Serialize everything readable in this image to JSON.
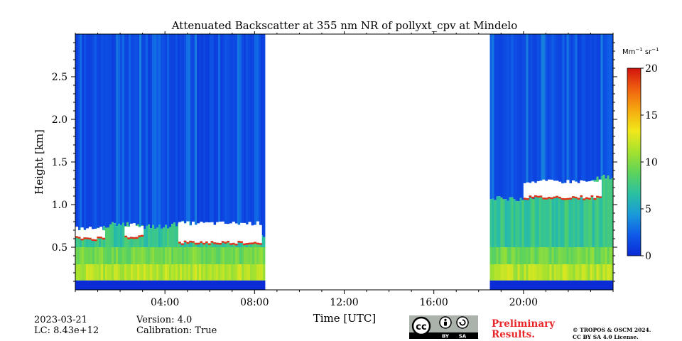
{
  "chart_data": {
    "type": "heatmap",
    "title": "Attenuated Backscatter at 355 nm NR of pollyxt_cpv at Mindelo",
    "xlabel": "Time [UTC]",
    "ylabel": "Height [km]",
    "x_unit": "hours UTC",
    "xlim": [
      0,
      24
    ],
    "ylim": [
      0,
      3.0
    ],
    "x_ticks": [
      {
        "value": 4,
        "label": "04:00"
      },
      {
        "value": 8,
        "label": "08:00"
      },
      {
        "value": 12,
        "label": "12:00"
      },
      {
        "value": 16,
        "label": "16:00"
      },
      {
        "value": 20,
        "label": "20:00"
      }
    ],
    "y_ticks": [
      {
        "value": 0.5,
        "label": "0.5"
      },
      {
        "value": 1.0,
        "label": "1.0"
      },
      {
        "value": 1.5,
        "label": "1.5"
      },
      {
        "value": 2.0,
        "label": "2.0"
      },
      {
        "value": 2.5,
        "label": "2.5"
      }
    ],
    "colorbar": {
      "label_parts": {
        "base": "Mm",
        "exp1": "−1",
        "mid": " sr",
        "exp2": "−1"
      },
      "min": 0,
      "max": 20,
      "ticks": [
        {
          "value": 0,
          "label": "0"
        },
        {
          "value": 5,
          "label": "5"
        },
        {
          "value": 10,
          "label": "10"
        },
        {
          "value": 15,
          "label": "15"
        },
        {
          "value": 20,
          "label": "20"
        }
      ],
      "colormap": [
        "#0a2bd6",
        "#0f5ae8",
        "#1a9bd8",
        "#2bc0a0",
        "#5fd35a",
        "#a6e22e",
        "#f2e81a",
        "#f5a90f",
        "#f06010",
        "#d2130f"
      ]
    },
    "data_segments": [
      {
        "start_hour": 0.0,
        "end_hour": 8.4
      },
      {
        "start_hour": 18.5,
        "end_hour": 24.0
      }
    ],
    "no_data_gap": {
      "start_hour": 8.4,
      "end_hour": 18.5
    },
    "layer_top_profile_km": [
      {
        "hour": 0.0,
        "km": 0.72
      },
      {
        "hour": 1.0,
        "km": 0.7
      },
      {
        "hour": 1.5,
        "km": 0.77
      },
      {
        "hour": 2.3,
        "km": 0.78
      },
      {
        "hour": 3.0,
        "km": 0.74
      },
      {
        "hour": 4.0,
        "km": 0.74
      },
      {
        "hour": 5.0,
        "km": 0.8
      },
      {
        "hour": 6.0,
        "km": 0.74
      },
      {
        "hour": 7.0,
        "km": 0.72
      },
      {
        "hour": 8.4,
        "km": 0.62
      },
      {
        "hour": 18.5,
        "km": 1.08
      },
      {
        "hour": 20.0,
        "km": 1.06
      },
      {
        "hour": 21.0,
        "km": 1.13
      },
      {
        "hour": 22.0,
        "km": 1.22
      },
      {
        "hour": 23.0,
        "km": 1.26
      },
      {
        "hour": 23.3,
        "km": 1.32
      }
    ],
    "cloud_layer": [
      {
        "start_hour": 0.0,
        "end_hour": 1.3,
        "bottom_km": 0.6,
        "top_km": 0.72
      },
      {
        "start_hour": 2.2,
        "end_hour": 3.0,
        "bottom_km": 0.62,
        "top_km": 0.76
      },
      {
        "start_hour": 4.6,
        "end_hour": 8.3,
        "bottom_km": 0.55,
        "top_km": 0.78
      },
      {
        "start_hour": 20.0,
        "end_hour": 23.4,
        "bottom_km": 1.08,
        "top_km": 1.27
      }
    ]
  },
  "footer": {
    "date": "2023-03-21",
    "lc": "LC: 8.43e+12",
    "version": "Version: 4.0",
    "calibration": "Calibration: True",
    "preliminary_line1": "Preliminary",
    "preliminary_line2": "Results.",
    "copyright_line1": "© TROPOS & OSCM 2024.",
    "copyright_line2": "CC BY SA 4.0 License.",
    "license_badge": {
      "cc": "cc",
      "by": "BY",
      "sa": "SA"
    }
  },
  "colors": {
    "preliminary": "#e8262a",
    "gap": "#ffffff",
    "ground_band": "#0a2bd6"
  }
}
